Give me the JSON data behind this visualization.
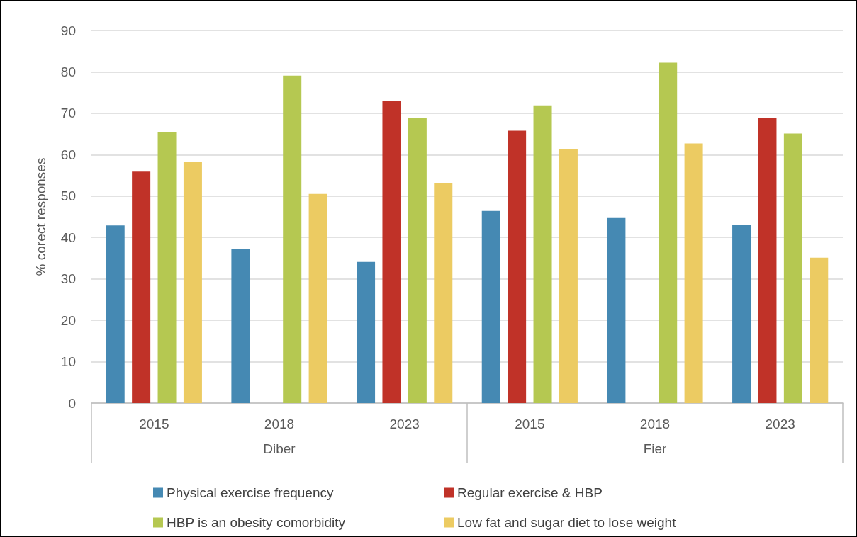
{
  "chart_data": {
    "type": "bar",
    "ylabel": "% corect responses",
    "categories": [
      "2015",
      "2018",
      "2023",
      "2015",
      "2018",
      "2023"
    ],
    "annotations": [
      "Diber",
      "Fier"
    ],
    "series": [
      {
        "name": "Physical exercise frequency",
        "color": "#4589b3",
        "values": [
          42.9,
          37.2,
          34.1,
          46.4,
          44.7,
          43
        ]
      },
      {
        "name": "Regular exercise & HBP",
        "color": "#c03228",
        "values": [
          55.9,
          null,
          73,
          65.8,
          null,
          68.9
        ]
      },
      {
        "name": "HBP is an obesity comorbidity",
        "color": "#b5c851",
        "values": [
          65.5,
          79.1,
          68.9,
          71.9,
          82.2,
          65.1
        ]
      },
      {
        "name": "Low fat and sugar diet to lose weight",
        "color": "#eccb62",
        "values": [
          58.3,
          50.5,
          53.2,
          61.4,
          62.7,
          35.1
        ]
      }
    ],
    "ylim": [
      0,
      90
    ],
    "yticks": [
      0,
      10,
      20,
      30,
      40,
      50,
      60,
      70,
      80,
      90
    ],
    "grid": "y",
    "legend": "bottom"
  }
}
